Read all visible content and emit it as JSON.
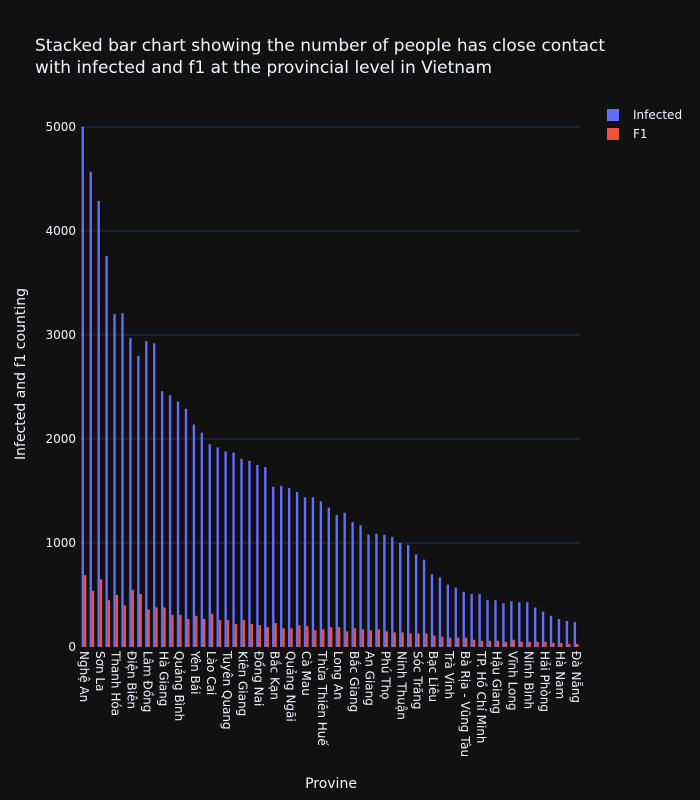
{
  "chart_data": {
    "type": "bar",
    "title_lines": [
      "Stacked bar chart showing the number of people has close contact",
      "with infected and f1 at the provincial level in Vietnam"
    ],
    "xlabel": "Provine",
    "ylabel": "Infected and f1 counting",
    "ylim": [
      0,
      5000
    ],
    "yticks": [
      0,
      1000,
      2000,
      3000,
      4000,
      5000
    ],
    "grid": true,
    "legend_placement": "top-right",
    "barmode": "group",
    "categories": [
      "Nghệ An",
      "",
      "Sơn La",
      "",
      "Thanh Hóa",
      "",
      "Điện Biên",
      "",
      "Lâm Đồng",
      "",
      "Hà Giang",
      "",
      "Quảng Bình",
      "",
      "Yên Bái",
      "",
      "Lào Cai",
      "",
      "Tuyên Quang",
      "",
      "Kiên Giang",
      "",
      "Đồng Nai",
      "",
      "Bắc Kạn",
      "",
      "Quảng Ngãi",
      "",
      "Cà Mau",
      "",
      "Thừa Thiên Huế",
      "",
      "Long An",
      "",
      "Bắc Giang",
      "",
      "An Giang",
      "",
      "Phú Thọ",
      "",
      "Ninh Thuận",
      "",
      "Sóc Trăng",
      "",
      "Bạc Liêu",
      "",
      "Trà Vinh",
      "",
      "Bà Rịa - Vũng Tàu",
      "",
      "TP. Hồ Chí Minh",
      "",
      "Hậu Giang",
      "",
      "Vĩnh Long",
      "",
      "Ninh Bình",
      "",
      "Hải Phòng",
      "",
      "Hà Nam",
      "",
      "Đà Nẵng"
    ],
    "series": [
      {
        "name": "Infected",
        "color": "#636efa",
        "values": [
          5000,
          4570,
          4290,
          3760,
          3200,
          3210,
          2970,
          2800,
          2940,
          2920,
          2460,
          2420,
          2360,
          2290,
          2140,
          2060,
          1950,
          1920,
          1880,
          1870,
          1810,
          1790,
          1750,
          1730,
          1540,
          1550,
          1530,
          1490,
          1440,
          1440,
          1400,
          1340,
          1270,
          1290,
          1200,
          1170,
          1080,
          1090,
          1080,
          1060,
          1000,
          980,
          890,
          840,
          700,
          670,
          600,
          570,
          530,
          510,
          510,
          450,
          450,
          420,
          440,
          430,
          430,
          380,
          340,
          300,
          270,
          250,
          240
        ]
      },
      {
        "name": "F1",
        "color": "#ef553b",
        "values": [
          690,
          540,
          650,
          450,
          500,
          400,
          550,
          510,
          360,
          380,
          380,
          310,
          310,
          270,
          300,
          270,
          320,
          260,
          260,
          220,
          260,
          220,
          210,
          190,
          230,
          180,
          180,
          210,
          200,
          160,
          170,
          190,
          190,
          150,
          180,
          170,
          160,
          170,
          150,
          140,
          140,
          130,
          130,
          130,
          110,
          100,
          90,
          90,
          90,
          70,
          60,
          60,
          60,
          50,
          70,
          50,
          50,
          50,
          50,
          40,
          40,
          30,
          30
        ]
      }
    ]
  }
}
